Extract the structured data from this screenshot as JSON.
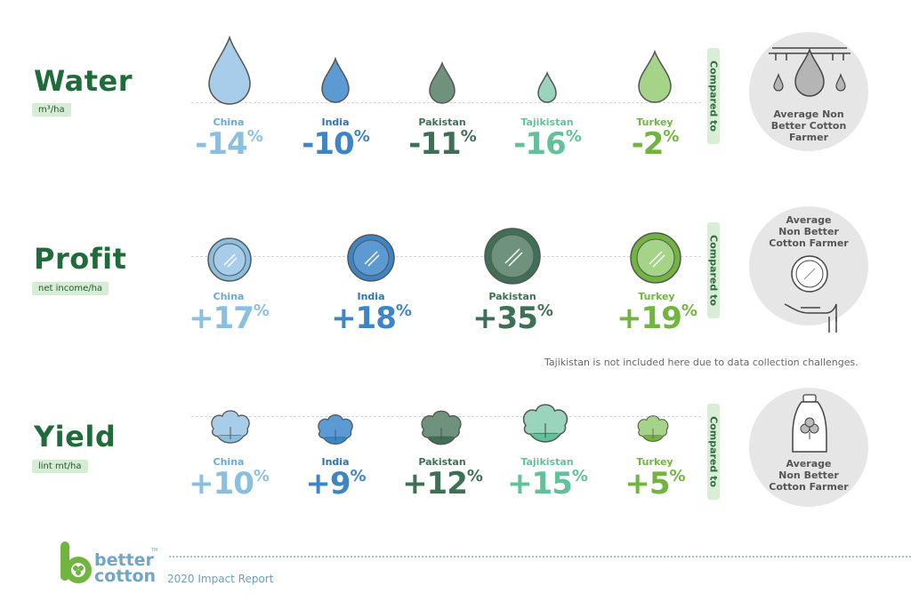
{
  "sections": {
    "water": {
      "title": "Water",
      "unit": "m³/ha",
      "items": [
        {
          "country": "China",
          "value": "-14",
          "color": "#8bbfe0"
        },
        {
          "country": "India",
          "value": "-10",
          "color": "#3d85c4"
        },
        {
          "country": "Pakistan",
          "value": "-11",
          "color": "#3e7055"
        },
        {
          "country": "Tajikistan",
          "value": "-16",
          "color": "#61c29a"
        },
        {
          "country": "Turkey",
          "value": "-2",
          "color": "#71b440"
        }
      ],
      "compared": "Compared to",
      "circle_text": [
        "Average Non",
        "Better Cotton",
        "Farmer"
      ]
    },
    "profit": {
      "title": "Profit",
      "unit": "net income/ha",
      "items": [
        {
          "country": "China",
          "value": "+17",
          "color": "#8bbfe0"
        },
        {
          "country": "India",
          "value": "+18",
          "color": "#3d85c4"
        },
        {
          "country": "Pakistan",
          "value": "+35",
          "color": "#3e7055"
        },
        {
          "country": "Turkey",
          "value": "+19",
          "color": "#71b440"
        }
      ],
      "compared": "Compared to",
      "circle_text": [
        "Average",
        "Non Better",
        "Cotton Farmer"
      ]
    },
    "yield": {
      "title": "Yield",
      "unit": "lint mt/ha",
      "items": [
        {
          "country": "China",
          "value": "+10",
          "color": "#8bbfe0"
        },
        {
          "country": "India",
          "value": "+9",
          "color": "#3d85c4"
        },
        {
          "country": "Pakistan",
          "value": "+12",
          "color": "#3e7055"
        },
        {
          "country": "Tajikistan",
          "value": "+15",
          "color": "#61c29a"
        },
        {
          "country": "Turkey",
          "value": "+5",
          "color": "#71b440"
        }
      ],
      "compared": "Compared to",
      "circle_text": [
        "Average",
        "Non Better",
        "Cotton Farmer"
      ]
    }
  },
  "percent_sign": "%",
  "note": "Tajikistan is not included here due to data collection challenges.",
  "footer": {
    "logo_line1": "better",
    "logo_line2": "cotton",
    "logo_tm": "TM",
    "report": "2020 Impact Report"
  }
}
